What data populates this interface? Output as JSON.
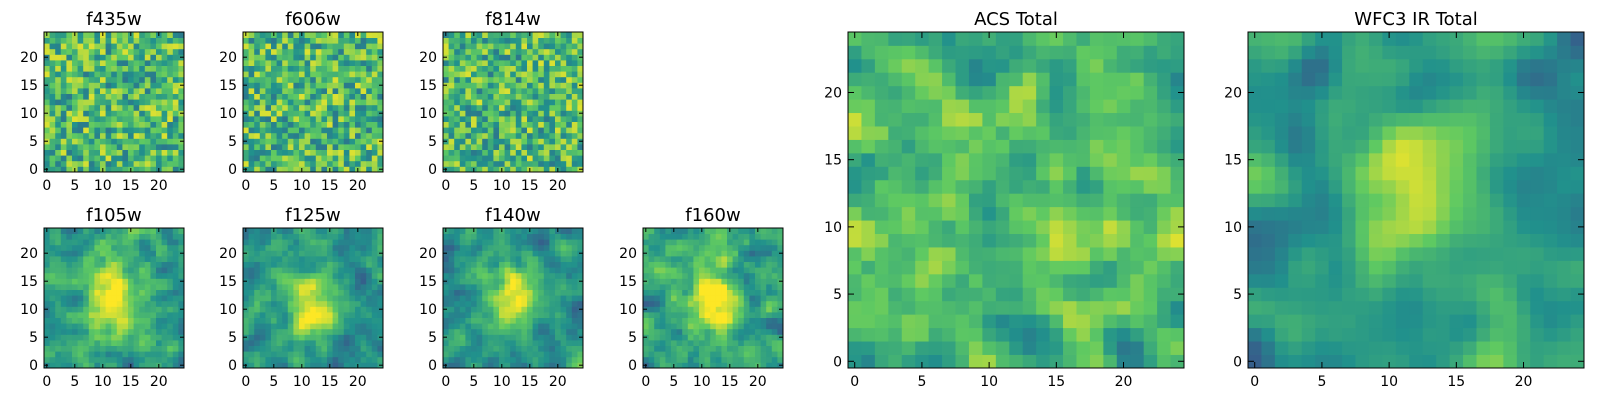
{
  "figure": {
    "colormap": [
      "#440154",
      "#3b528b",
      "#21918c",
      "#5ec962",
      "#fde725"
    ],
    "frame_color": "#000000"
  },
  "chart_data": [
    {
      "type": "heatmap",
      "title": "f435w",
      "grid_size": 25,
      "xlim": [
        0,
        24
      ],
      "ylim": [
        0,
        24
      ],
      "xticks": [
        "0",
        "5",
        "10",
        "15",
        "20"
      ],
      "yticks": [
        "0",
        "5",
        "10",
        "15",
        "20"
      ],
      "seed": 11,
      "pattern": "noise",
      "smooth": 0
    },
    {
      "type": "heatmap",
      "title": "f606w",
      "grid_size": 25,
      "xlim": [
        0,
        24
      ],
      "ylim": [
        0,
        24
      ],
      "xticks": [
        "0",
        "5",
        "10",
        "15",
        "20"
      ],
      "yticks": [
        "0",
        "5",
        "10",
        "15",
        "20"
      ],
      "seed": 22,
      "pattern": "noise",
      "smooth": 0
    },
    {
      "type": "heatmap",
      "title": "f814w",
      "grid_size": 25,
      "xlim": [
        0,
        24
      ],
      "ylim": [
        0,
        24
      ],
      "xticks": [
        "0",
        "5",
        "10",
        "15",
        "20"
      ],
      "yticks": [
        "0",
        "5",
        "10",
        "15",
        "20"
      ],
      "seed": 33,
      "pattern": "noise",
      "smooth": 0
    },
    {
      "type": "heatmap",
      "title": "f105w",
      "grid_size": 25,
      "xlim": [
        0,
        24
      ],
      "ylim": [
        0,
        24
      ],
      "xticks": [
        "0",
        "5",
        "10",
        "15",
        "20"
      ],
      "yticks": [
        "0",
        "5",
        "10",
        "15",
        "20"
      ],
      "seed": 44,
      "pattern": "blob",
      "smooth": 1
    },
    {
      "type": "heatmap",
      "title": "f125w",
      "grid_size": 25,
      "xlim": [
        0,
        24
      ],
      "ylim": [
        0,
        24
      ],
      "xticks": [
        "0",
        "5",
        "10",
        "15",
        "20"
      ],
      "yticks": [
        "0",
        "5",
        "10",
        "15",
        "20"
      ],
      "seed": 55,
      "pattern": "blob",
      "smooth": 1
    },
    {
      "type": "heatmap",
      "title": "f140w",
      "grid_size": 25,
      "xlim": [
        0,
        24
      ],
      "ylim": [
        0,
        24
      ],
      "xticks": [
        "0",
        "5",
        "10",
        "15",
        "20"
      ],
      "yticks": [
        "0",
        "5",
        "10",
        "15",
        "20"
      ],
      "seed": 66,
      "pattern": "blob",
      "smooth": 1
    },
    {
      "type": "heatmap",
      "title": "f160w",
      "grid_size": 25,
      "xlim": [
        0,
        24
      ],
      "ylim": [
        0,
        24
      ],
      "xticks": [
        "0",
        "5",
        "10",
        "15",
        "20"
      ],
      "yticks": [
        "0",
        "5",
        "10",
        "15",
        "20"
      ],
      "seed": 77,
      "pattern": "blob",
      "smooth": 1
    },
    {
      "type": "heatmap",
      "title": "ACS Total",
      "grid_size": 25,
      "xlim": [
        0,
        24
      ],
      "ylim": [
        0,
        24
      ],
      "xticks": [
        "0",
        "5",
        "10",
        "15",
        "20"
      ],
      "yticks": [
        "0",
        "5",
        "10",
        "15",
        "20"
      ],
      "seed": 88,
      "pattern": "noise",
      "smooth": 1
    },
    {
      "type": "heatmap",
      "title": "WFC3 IR Total",
      "grid_size": 25,
      "xlim": [
        0,
        24
      ],
      "ylim": [
        0,
        24
      ],
      "xticks": [
        "0",
        "5",
        "10",
        "15",
        "20"
      ],
      "yticks": [
        "0",
        "5",
        "10",
        "15",
        "20"
      ],
      "seed": 99,
      "pattern": "blob",
      "smooth": 2
    }
  ]
}
